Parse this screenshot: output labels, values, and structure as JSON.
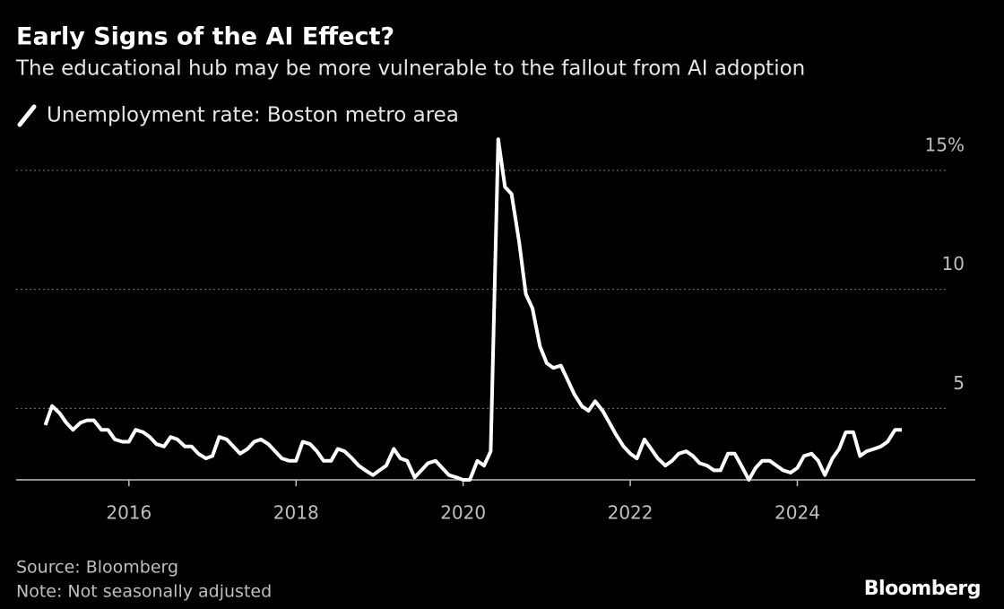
{
  "chart_data": {
    "type": "line",
    "title": "Early Signs of the AI Effect?",
    "subtitle": "The educational hub may be more vulnerable to the fallout from AI adoption",
    "source": "Source: Bloomberg",
    "note": "Note: Not seasonally adjusted",
    "brand": "Bloomberg",
    "x": [
      2015,
      2015.08,
      2015.17,
      2015.25,
      2015.33,
      2015.42,
      2015.5,
      2015.58,
      2015.67,
      2015.75,
      2015.83,
      2015.92,
      2016,
      2016.08,
      2016.17,
      2016.25,
      2016.33,
      2016.42,
      2016.5,
      2016.58,
      2016.67,
      2016.75,
      2016.83,
      2016.92,
      2017,
      2017.08,
      2017.17,
      2017.25,
      2017.33,
      2017.42,
      2017.5,
      2017.58,
      2017.67,
      2017.75,
      2017.83,
      2017.92,
      2018,
      2018.08,
      2018.17,
      2018.25,
      2018.33,
      2018.42,
      2018.5,
      2018.58,
      2018.67,
      2018.75,
      2018.83,
      2018.92,
      2019,
      2019.08,
      2019.17,
      2019.25,
      2019.33,
      2019.42,
      2019.5,
      2019.58,
      2019.67,
      2019.75,
      2019.83,
      2019.92,
      2020,
      2020.08,
      2020.17,
      2020.25,
      2020.33,
      2020.42,
      2020.5,
      2020.58,
      2020.67,
      2020.75,
      2020.83,
      2020.92,
      2021,
      2021.08,
      2021.17,
      2021.25,
      2021.33,
      2021.42,
      2021.5,
      2021.58,
      2021.67,
      2021.75,
      2021.83,
      2021.92,
      2022,
      2022.08,
      2022.17,
      2022.25,
      2022.33,
      2022.42,
      2022.5,
      2022.58,
      2022.67,
      2022.75,
      2022.83,
      2022.92,
      2023,
      2023.08,
      2023.17,
      2023.25,
      2023.33,
      2023.42,
      2023.5,
      2023.58,
      2023.67,
      2023.75,
      2023.83,
      2023.92,
      2024,
      2024.08,
      2024.17,
      2024.25,
      2024.33,
      2024.42,
      2024.5,
      2024.58,
      2024.67,
      2024.75,
      2024.83,
      2024.92,
      2025,
      2025.08,
      2025.17,
      2025.25
    ],
    "series": [
      {
        "name": "Unemployment rate: Boston metro area",
        "color": "#ffffff",
        "values": [
          4.3,
          5.1,
          4.8,
          4.4,
          4.1,
          4.4,
          4.5,
          4.5,
          4.1,
          4.1,
          3.7,
          3.6,
          3.6,
          4.1,
          4.0,
          3.8,
          3.5,
          3.4,
          3.8,
          3.7,
          3.4,
          3.4,
          3.1,
          2.9,
          3.0,
          3.8,
          3.7,
          3.4,
          3.1,
          3.3,
          3.6,
          3.7,
          3.5,
          3.2,
          2.9,
          2.8,
          2.8,
          3.6,
          3.5,
          3.2,
          2.8,
          2.8,
          3.3,
          3.2,
          2.9,
          2.6,
          2.4,
          2.2,
          2.4,
          2.6,
          3.3,
          2.9,
          2.8,
          2.1,
          2.4,
          2.7,
          2.8,
          2.5,
          2.2,
          2.1,
          2.0,
          2.0,
          2.8,
          2.6,
          3.2,
          16.3,
          14.3,
          14.0,
          12.0,
          9.8,
          9.2,
          7.6,
          6.9,
          6.7,
          6.8,
          6.2,
          5.6,
          5.1,
          4.9,
          5.3,
          4.9,
          4.4,
          3.9,
          3.4,
          3.1,
          2.9,
          3.7,
          3.3,
          2.9,
          2.6,
          2.8,
          3.1,
          3.2,
          3.0,
          2.7,
          2.6,
          2.4,
          2.4,
          3.1,
          3.1,
          2.6,
          2.0,
          2.5,
          2.8,
          2.8,
          2.6,
          2.4,
          2.3,
          2.5,
          3.0,
          3.1,
          2.8,
          2.2,
          2.9,
          3.3,
          4.0,
          4.0,
          3.0,
          3.2,
          3.3,
          3.4,
          3.6,
          4.1,
          4.1
        ]
      }
    ],
    "xlim": [
      2014.65,
      2026.13
    ],
    "ylim": [
      2,
      16.5
    ],
    "xticks": [
      2016,
      2018,
      2020,
      2022,
      2024
    ],
    "yticks": [
      5,
      10,
      {
        "value": 15,
        "label": "15%"
      }
    ],
    "grid": true
  }
}
